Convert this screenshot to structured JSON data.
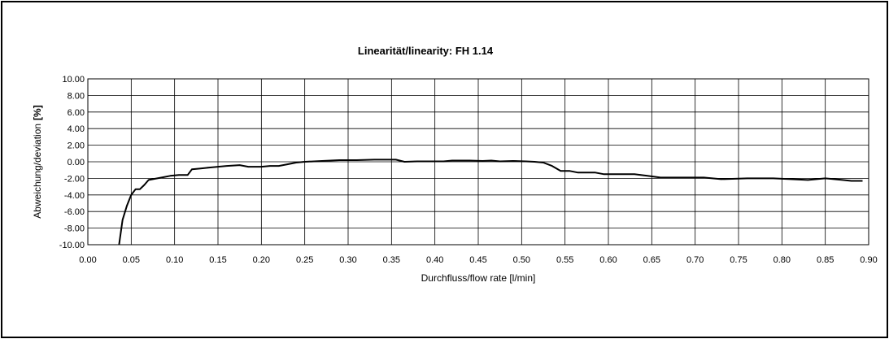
{
  "chart_data": {
    "type": "line",
    "title": "Linearität/linearity: FH 1.14",
    "xlabel": "Durchfluss/flow rate [l/min]",
    "ylabel": "Abweichung/deviation",
    "ylabel_unit": "[%]",
    "xlim": [
      0,
      0.9
    ],
    "ylim": [
      -10,
      10
    ],
    "x_ticks": [
      "0.00",
      "0.05",
      "0.10",
      "0.15",
      "0.20",
      "0.25",
      "0.30",
      "0.35",
      "0.40",
      "0.45",
      "0.50",
      "0.55",
      "0.60",
      "0.65",
      "0.70",
      "0.75",
      "0.80",
      "0.85",
      "0.90"
    ],
    "y_ticks": [
      "10.00",
      "8.00",
      "6.00",
      "4.00",
      "2.00",
      "0.00",
      "-2.00",
      "-4.00",
      "-6.00",
      "-8.00",
      "-10.00"
    ],
    "x_tick_values": [
      0,
      0.05,
      0.1,
      0.15,
      0.2,
      0.25,
      0.3,
      0.35,
      0.4,
      0.45,
      0.5,
      0.55,
      0.6,
      0.65,
      0.7,
      0.75,
      0.8,
      0.85,
      0.9
    ],
    "y_tick_values": [
      10,
      8,
      6,
      4,
      2,
      0,
      -2,
      -4,
      -6,
      -8,
      -10
    ],
    "grid": true,
    "series": [
      {
        "color": "#000000",
        "x": [
          0.036,
          0.04,
          0.045,
          0.05,
          0.055,
          0.06,
          0.065,
          0.07,
          0.075,
          0.085,
          0.095,
          0.105,
          0.115,
          0.12,
          0.13,
          0.14,
          0.15,
          0.16,
          0.175,
          0.185,
          0.2,
          0.21,
          0.22,
          0.23,
          0.24,
          0.25,
          0.27,
          0.29,
          0.31,
          0.33,
          0.345,
          0.355,
          0.365,
          0.38,
          0.4,
          0.41,
          0.42,
          0.44,
          0.455,
          0.465,
          0.475,
          0.49,
          0.505,
          0.515,
          0.525,
          0.535,
          0.545,
          0.555,
          0.565,
          0.575,
          0.585,
          0.595,
          0.605,
          0.615,
          0.63,
          0.645,
          0.66,
          0.68,
          0.7,
          0.71,
          0.73,
          0.76,
          0.79,
          0.81,
          0.83,
          0.85,
          0.86,
          0.87,
          0.88,
          0.893
        ],
        "y": [
          -10.0,
          -7.0,
          -5.3,
          -4.0,
          -3.3,
          -3.3,
          -2.8,
          -2.2,
          -2.1,
          -1.9,
          -1.7,
          -1.6,
          -1.6,
          -0.9,
          -0.8,
          -0.7,
          -0.6,
          -0.5,
          -0.4,
          -0.6,
          -0.6,
          -0.5,
          -0.5,
          -0.3,
          -0.1,
          0.0,
          0.1,
          0.2,
          0.2,
          0.25,
          0.25,
          0.25,
          0.0,
          0.05,
          0.05,
          0.05,
          0.15,
          0.15,
          0.1,
          0.15,
          0.05,
          0.1,
          0.05,
          0.0,
          -0.1,
          -0.5,
          -1.1,
          -1.1,
          -1.3,
          -1.3,
          -1.3,
          -1.5,
          -1.5,
          -1.5,
          -1.5,
          -1.7,
          -1.9,
          -1.9,
          -1.9,
          -1.9,
          -2.1,
          -2.0,
          -2.0,
          -2.1,
          -2.2,
          -2.0,
          -2.1,
          -2.2,
          -2.3,
          -2.3
        ]
      }
    ]
  }
}
